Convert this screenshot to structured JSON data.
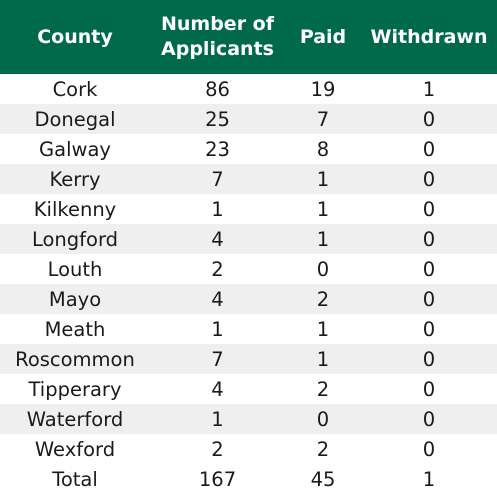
{
  "table": {
    "headers": {
      "county": "County",
      "applicants_line1": "Number of",
      "applicants_line2": "Applicants",
      "paid": "Paid",
      "withdrawn": "Withdrawn"
    },
    "rows": [
      {
        "county": "Cork",
        "applicants": "86",
        "paid": "19",
        "withdrawn": "1"
      },
      {
        "county": "Donegal",
        "applicants": "25",
        "paid": "7",
        "withdrawn": "0"
      },
      {
        "county": "Galway",
        "applicants": "23",
        "paid": "8",
        "withdrawn": "0"
      },
      {
        "county": "Kerry",
        "applicants": "7",
        "paid": "1",
        "withdrawn": "0"
      },
      {
        "county": "Kilkenny",
        "applicants": "1",
        "paid": "1",
        "withdrawn": "0"
      },
      {
        "county": "Longford",
        "applicants": "4",
        "paid": "1",
        "withdrawn": "0"
      },
      {
        "county": "Louth",
        "applicants": "2",
        "paid": "0",
        "withdrawn": "0"
      },
      {
        "county": "Mayo",
        "applicants": "4",
        "paid": "2",
        "withdrawn": "0"
      },
      {
        "county": "Meath",
        "applicants": "1",
        "paid": "1",
        "withdrawn": "0"
      },
      {
        "county": "Roscommon",
        "applicants": "7",
        "paid": "1",
        "withdrawn": "0"
      },
      {
        "county": "Tipperary",
        "applicants": "4",
        "paid": "2",
        "withdrawn": "0"
      },
      {
        "county": "Waterford",
        "applicants": "1",
        "paid": "0",
        "withdrawn": "0"
      },
      {
        "county": "Wexford",
        "applicants": "2",
        "paid": "2",
        "withdrawn": "0"
      }
    ],
    "total": {
      "county": "Total",
      "applicants": "167",
      "paid": "45",
      "withdrawn": "1"
    }
  },
  "colors": {
    "header_bg": "#00694a",
    "header_text": "#ffffff",
    "stripe": "#efefef"
  }
}
